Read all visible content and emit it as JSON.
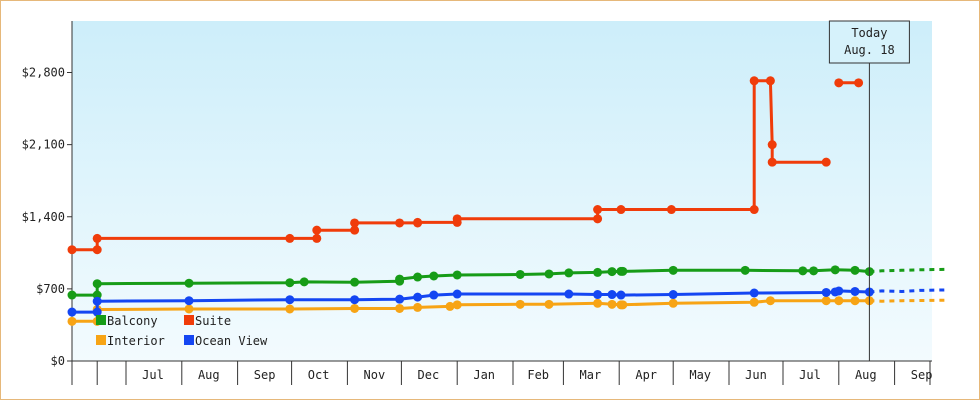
{
  "chart_data": {
    "type": "line",
    "title": "",
    "xlabel": "",
    "ylabel": "",
    "ylim": [
      0,
      3300
    ],
    "y_ticks": [
      0,
      700,
      1400,
      2100,
      2800
    ],
    "y_tick_labels": [
      "$0",
      "$700",
      "$1,400",
      "$2,100",
      "$2,800"
    ],
    "x_range": [
      "2016-06-01",
      "2017-09-30"
    ],
    "x_month_ticks": [
      "2016-06-15",
      "2016-07-01",
      "2016-08-01",
      "2016-09-01",
      "2016-10-01",
      "2016-11-01",
      "2016-12-01",
      "2017-01-01",
      "2017-02-01",
      "2017-03-01",
      "2017-04-01",
      "2017-05-01",
      "2017-06-01",
      "2017-07-01",
      "2017-08-01",
      "2017-09-01",
      "2017-10-01"
    ],
    "x_month_labels": [
      {
        "date": "2016-07-16",
        "label": "Jul"
      },
      {
        "date": "2016-08-16",
        "label": "Aug"
      },
      {
        "date": "2016-09-16",
        "label": "Sep"
      },
      {
        "date": "2016-10-16",
        "label": "Oct"
      },
      {
        "date": "2016-11-16",
        "label": "Nov"
      },
      {
        "date": "2016-12-16",
        "label": "Dec"
      },
      {
        "date": "2017-01-16",
        "label": "Jan"
      },
      {
        "date": "2017-02-15",
        "label": "Feb"
      },
      {
        "date": "2017-03-16",
        "label": "Mar"
      },
      {
        "date": "2017-04-16",
        "label": "Apr"
      },
      {
        "date": "2017-05-16",
        "label": "May"
      },
      {
        "date": "2017-06-16",
        "label": "Jun"
      },
      {
        "date": "2017-07-16",
        "label": "Jul"
      },
      {
        "date": "2017-08-16",
        "label": "Aug"
      },
      {
        "date": "2017-09-16",
        "label": "Sep"
      }
    ],
    "today": {
      "date": "2017-08-18",
      "label_line1": "Today",
      "label_line2": "Aug. 18"
    },
    "projection_end": "2017-10-01",
    "grid": false,
    "legend_position": "bottom-left",
    "background_gradient": [
      "#cdeefa",
      "#f3fbfe"
    ],
    "series": [
      {
        "name": "Balcony",
        "color": "#179c17",
        "points": [
          {
            "d": "2016-06-01",
            "v": 640
          },
          {
            "d": "2016-06-15",
            "v": 640
          },
          {
            "d": "2016-06-15",
            "v": 750
          },
          {
            "d": "2016-08-05",
            "v": 755
          },
          {
            "d": "2016-09-30",
            "v": 760
          },
          {
            "d": "2016-10-08",
            "v": 768
          },
          {
            "d": "2016-11-05",
            "v": 765
          },
          {
            "d": "2016-11-30",
            "v": 775
          },
          {
            "d": "2016-11-30",
            "v": 795
          },
          {
            "d": "2016-12-10",
            "v": 815
          },
          {
            "d": "2016-12-19",
            "v": 825
          },
          {
            "d": "2017-01-01",
            "v": 835
          },
          {
            "d": "2017-02-05",
            "v": 840
          },
          {
            "d": "2017-02-21",
            "v": 845
          },
          {
            "d": "2017-03-04",
            "v": 855
          },
          {
            "d": "2017-03-20",
            "v": 860
          },
          {
            "d": "2017-03-28",
            "v": 868
          },
          {
            "d": "2017-04-02",
            "v": 870
          },
          {
            "d": "2017-04-03",
            "v": 870
          },
          {
            "d": "2017-05-01",
            "v": 880
          },
          {
            "d": "2017-06-10",
            "v": 880
          },
          {
            "d": "2017-07-12",
            "v": 875
          },
          {
            "d": "2017-07-18",
            "v": 875
          },
          {
            "d": "2017-07-30",
            "v": 885
          },
          {
            "d": "2017-08-10",
            "v": 880
          },
          {
            "d": "2017-08-18",
            "v": 868
          }
        ],
        "projection": [
          {
            "d": "2017-08-18",
            "v": 868
          },
          {
            "d": "2017-08-25",
            "v": 875
          },
          {
            "d": "2017-09-05",
            "v": 880
          },
          {
            "d": "2017-09-15",
            "v": 885
          },
          {
            "d": "2017-10-01",
            "v": 890
          }
        ]
      },
      {
        "name": "Suite",
        "color": "#f03c0a",
        "points": [
          {
            "d": "2016-06-01",
            "v": 1080
          },
          {
            "d": "2016-06-15",
            "v": 1080
          },
          {
            "d": "2016-06-15",
            "v": 1190
          },
          {
            "d": "2016-09-30",
            "v": 1190
          },
          {
            "d": "2016-10-15",
            "v": 1190
          },
          {
            "d": "2016-10-15",
            "v": 1270
          },
          {
            "d": "2016-11-05",
            "v": 1270
          },
          {
            "d": "2016-11-05",
            "v": 1340
          },
          {
            "d": "2016-11-30",
            "v": 1340
          },
          {
            "d": "2016-12-10",
            "v": 1340
          },
          {
            "d": "2016-12-10",
            "v": 1345
          },
          {
            "d": "2017-01-01",
            "v": 1345
          },
          {
            "d": "2017-01-01",
            "v": 1380
          },
          {
            "d": "2017-03-20",
            "v": 1380
          },
          {
            "d": "2017-03-20",
            "v": 1470
          },
          {
            "d": "2017-04-02",
            "v": 1470
          },
          {
            "d": "2017-04-30",
            "v": 1470
          },
          {
            "d": "2017-06-15",
            "v": 1470
          },
          {
            "d": "2017-06-15",
            "v": 2720
          },
          {
            "d": "2017-06-24",
            "v": 2720
          },
          {
            "d": "2017-06-25",
            "v": 2100
          },
          {
            "d": "2017-06-25",
            "v": 1930
          },
          {
            "d": "2017-07-25",
            "v": 1930
          }
        ],
        "segment2": [
          {
            "d": "2017-08-01",
            "v": 2700
          },
          {
            "d": "2017-08-12",
            "v": 2700
          }
        ]
      },
      {
        "name": "Interior",
        "color": "#f7a415",
        "points": [
          {
            "d": "2016-06-01",
            "v": 385
          },
          {
            "d": "2016-06-15",
            "v": 385
          },
          {
            "d": "2016-06-15",
            "v": 500
          },
          {
            "d": "2016-08-05",
            "v": 505
          },
          {
            "d": "2016-09-30",
            "v": 505
          },
          {
            "d": "2016-11-05",
            "v": 510
          },
          {
            "d": "2016-11-30",
            "v": 510
          },
          {
            "d": "2016-12-10",
            "v": 520
          },
          {
            "d": "2016-12-28",
            "v": 530
          },
          {
            "d": "2017-01-01",
            "v": 545
          },
          {
            "d": "2017-02-05",
            "v": 550
          },
          {
            "d": "2017-02-21",
            "v": 550
          },
          {
            "d": "2017-03-20",
            "v": 560
          },
          {
            "d": "2017-03-28",
            "v": 550
          },
          {
            "d": "2017-04-02",
            "v": 545
          },
          {
            "d": "2017-04-03",
            "v": 545
          },
          {
            "d": "2017-05-01",
            "v": 560
          },
          {
            "d": "2017-06-15",
            "v": 570
          },
          {
            "d": "2017-06-24",
            "v": 585
          },
          {
            "d": "2017-07-25",
            "v": 585
          },
          {
            "d": "2017-08-01",
            "v": 585
          },
          {
            "d": "2017-08-10",
            "v": 585
          },
          {
            "d": "2017-08-18",
            "v": 585
          }
        ],
        "projection": [
          {
            "d": "2017-08-18",
            "v": 585
          },
          {
            "d": "2017-08-25",
            "v": 580
          },
          {
            "d": "2017-09-05",
            "v": 585
          },
          {
            "d": "2017-10-01",
            "v": 590
          }
        ]
      },
      {
        "name": "Ocean View",
        "color": "#1446f2",
        "points": [
          {
            "d": "2016-06-01",
            "v": 475
          },
          {
            "d": "2016-06-15",
            "v": 475
          },
          {
            "d": "2016-06-15",
            "v": 580
          },
          {
            "d": "2016-08-05",
            "v": 585
          },
          {
            "d": "2016-09-30",
            "v": 595
          },
          {
            "d": "2016-11-05",
            "v": 595
          },
          {
            "d": "2016-11-30",
            "v": 600
          },
          {
            "d": "2016-12-10",
            "v": 620
          },
          {
            "d": "2016-12-19",
            "v": 640
          },
          {
            "d": "2017-01-01",
            "v": 650
          },
          {
            "d": "2017-03-04",
            "v": 650
          },
          {
            "d": "2017-03-20",
            "v": 645
          },
          {
            "d": "2017-03-28",
            "v": 645
          },
          {
            "d": "2017-04-02",
            "v": 640
          },
          {
            "d": "2017-05-01",
            "v": 645
          },
          {
            "d": "2017-06-15",
            "v": 660
          },
          {
            "d": "2017-07-25",
            "v": 665
          },
          {
            "d": "2017-07-30",
            "v": 670
          },
          {
            "d": "2017-08-01",
            "v": 680
          },
          {
            "d": "2017-08-10",
            "v": 675
          },
          {
            "d": "2017-08-18",
            "v": 670
          }
        ],
        "projection": [
          {
            "d": "2017-08-18",
            "v": 670
          },
          {
            "d": "2017-08-25",
            "v": 680
          },
          {
            "d": "2017-09-05",
            "v": 675
          },
          {
            "d": "2017-09-15",
            "v": 685
          },
          {
            "d": "2017-10-01",
            "v": 690
          }
        ]
      }
    ]
  },
  "legend": {
    "items": [
      {
        "label": "Balcony",
        "color": "#179c17"
      },
      {
        "label": "Suite",
        "color": "#f03c0a"
      },
      {
        "label": "Interior",
        "color": "#f7a415"
      },
      {
        "label": "Ocean View",
        "color": "#1446f2"
      }
    ]
  }
}
